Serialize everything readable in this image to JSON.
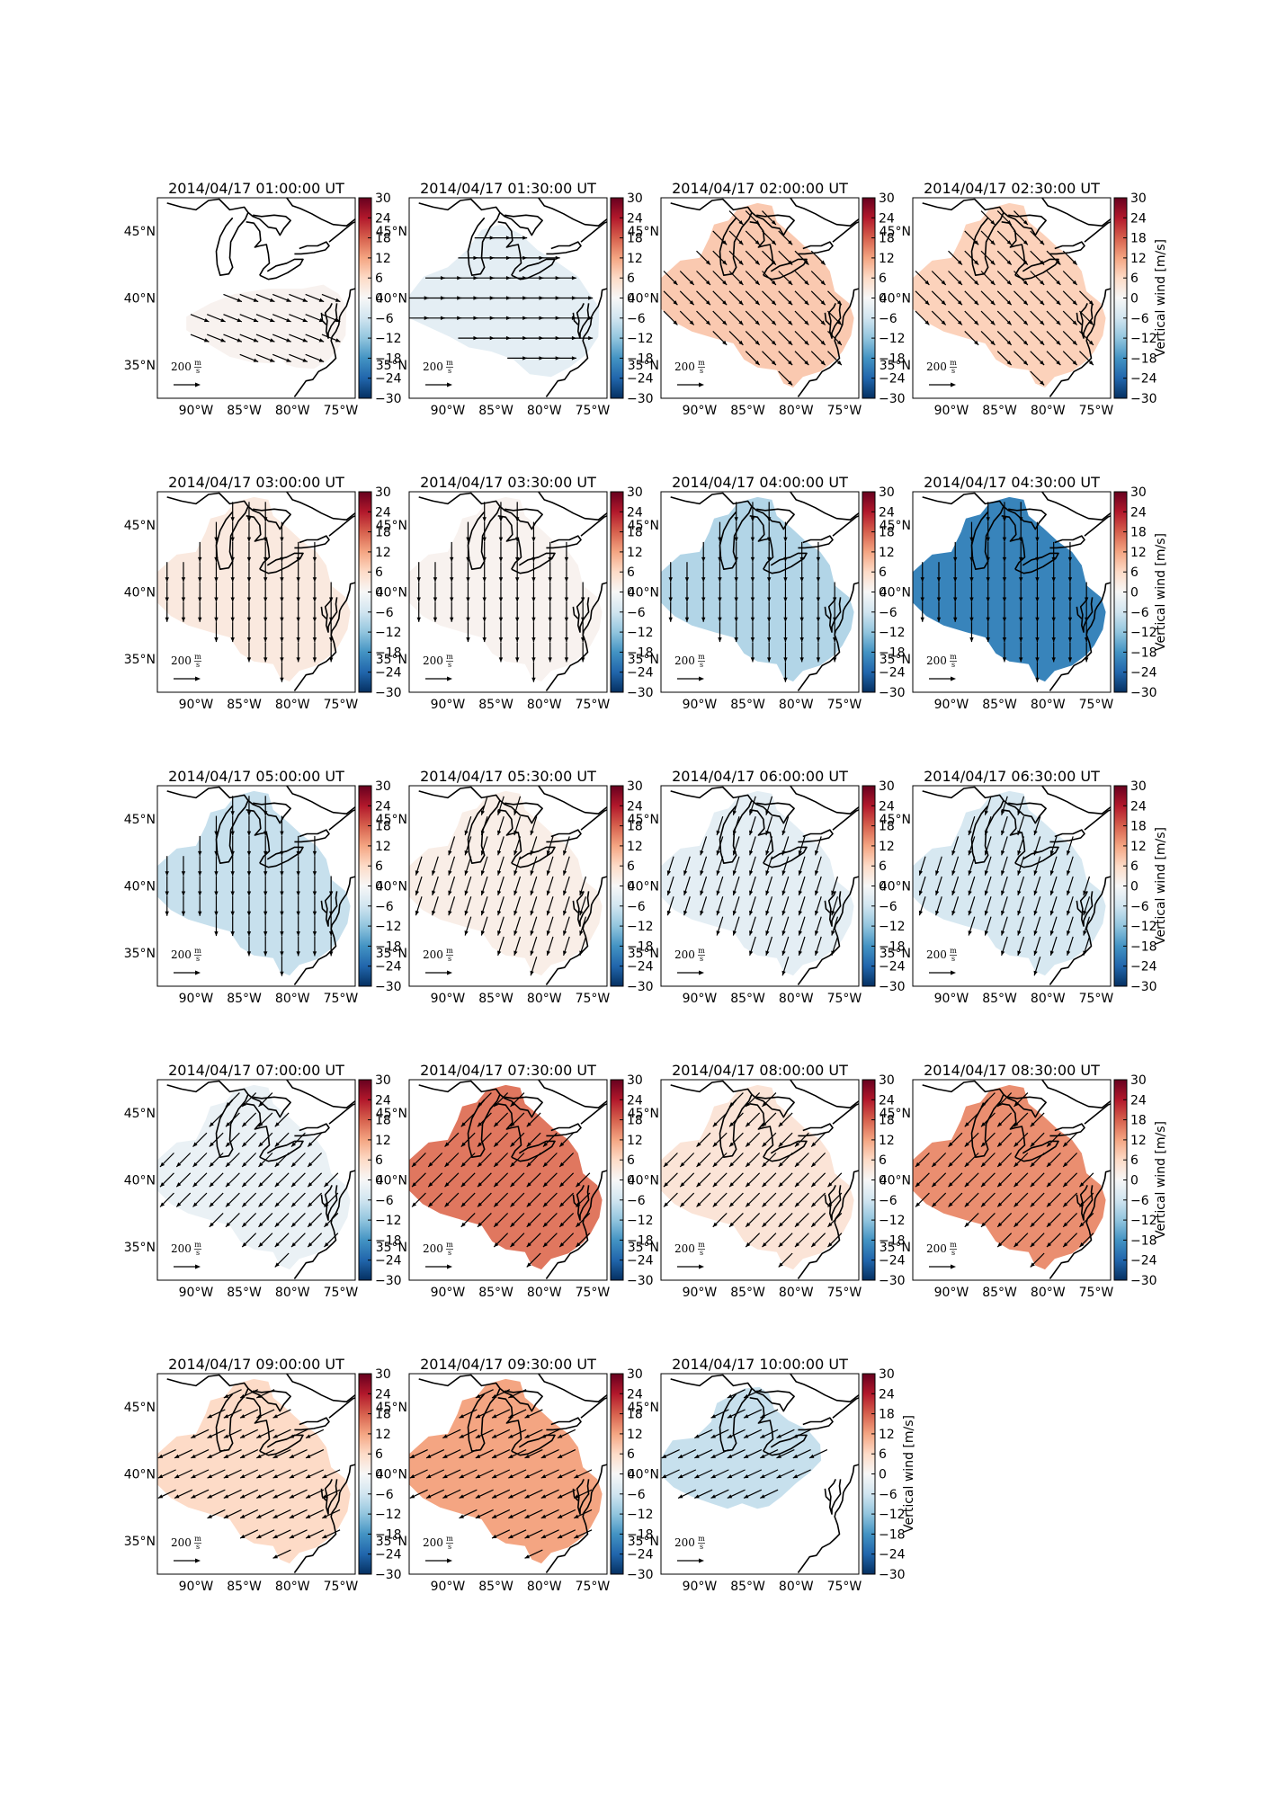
{
  "figure": {
    "colorbar_label": "Vertical wind [m/s]",
    "colorbar_ticks": [
      "30",
      "24",
      "18",
      "12",
      "6",
      "0",
      "−6",
      "−12",
      "−18",
      "−24",
      "−30"
    ],
    "colormap": [
      "#67001f",
      "#b2182b",
      "#d6604d",
      "#f4a582",
      "#fddbc7",
      "#f7f7f7",
      "#d1e5f0",
      "#92c5de",
      "#4393c3",
      "#2166ac",
      "#053061"
    ],
    "lat_labels": [
      "45°N",
      "40°N",
      "35°N"
    ],
    "lon_labels": [
      "90°W",
      "85°W",
      "80°W",
      "75°W"
    ],
    "scale_label": "200",
    "scale_unit_num": "m",
    "scale_unit_den": "s"
  },
  "chart_data": [
    {
      "type": "map",
      "title": "2014/04/17 01:00:00 UT",
      "vertical_wind": 1,
      "arrow_direction": "ese",
      "region": "south"
    },
    {
      "type": "map",
      "title": "2014/04/17 01:30:00 UT",
      "vertical_wind": -3,
      "arrow_direction": "e",
      "region": "wide"
    },
    {
      "type": "map",
      "title": "2014/04/17 02:00:00 UT",
      "vertical_wind": 8,
      "arrow_direction": "se",
      "region": "full"
    },
    {
      "type": "map",
      "title": "2014/04/17 02:30:00 UT",
      "vertical_wind": 7,
      "arrow_direction": "se",
      "region": "full"
    },
    {
      "type": "map",
      "title": "2014/04/17 03:00:00 UT",
      "vertical_wind": 3,
      "arrow_direction": "s",
      "region": "full"
    },
    {
      "type": "map",
      "title": "2014/04/17 03:30:00 UT",
      "vertical_wind": 1,
      "arrow_direction": "s",
      "region": "full"
    },
    {
      "type": "map",
      "title": "2014/04/17 04:00:00 UT",
      "vertical_wind": -9,
      "arrow_direction": "s",
      "region": "full"
    },
    {
      "type": "map",
      "title": "2014/04/17 04:30:00 UT",
      "vertical_wind": -20,
      "arrow_direction": "s",
      "region": "full"
    },
    {
      "type": "map",
      "title": "2014/04/17 05:00:00 UT",
      "vertical_wind": -7,
      "arrow_direction": "s",
      "region": "full"
    },
    {
      "type": "map",
      "title": "2014/04/17 05:30:00 UT",
      "vertical_wind": 2,
      "arrow_direction": "ssw",
      "region": "full"
    },
    {
      "type": "map",
      "title": "2014/04/17 06:00:00 UT",
      "vertical_wind": -3,
      "arrow_direction": "ssw",
      "region": "full"
    },
    {
      "type": "map",
      "title": "2014/04/17 06:30:00 UT",
      "vertical_wind": -5,
      "arrow_direction": "ssw",
      "region": "full"
    },
    {
      "type": "map",
      "title": "2014/04/17 07:00:00 UT",
      "vertical_wind": -2,
      "arrow_direction": "sw",
      "region": "full"
    },
    {
      "type": "map",
      "title": "2014/04/17 07:30:00 UT",
      "vertical_wind": 16,
      "arrow_direction": "sw",
      "region": "full"
    },
    {
      "type": "map",
      "title": "2014/04/17 08:00:00 UT",
      "vertical_wind": 4,
      "arrow_direction": "sw",
      "region": "full"
    },
    {
      "type": "map",
      "title": "2014/04/17 08:30:00 UT",
      "vertical_wind": 14,
      "arrow_direction": "sw",
      "region": "full"
    },
    {
      "type": "map",
      "title": "2014/04/17 09:00:00 UT",
      "vertical_wind": 6,
      "arrow_direction": "wsw",
      "region": "full"
    },
    {
      "type": "map",
      "title": "2014/04/17 09:30:00 UT",
      "vertical_wind": 12,
      "arrow_direction": "wsw",
      "region": "full"
    },
    {
      "type": "map",
      "title": "2014/04/17 10:00:00 UT",
      "vertical_wind": -7,
      "arrow_direction": "wsw",
      "region": "north"
    }
  ]
}
